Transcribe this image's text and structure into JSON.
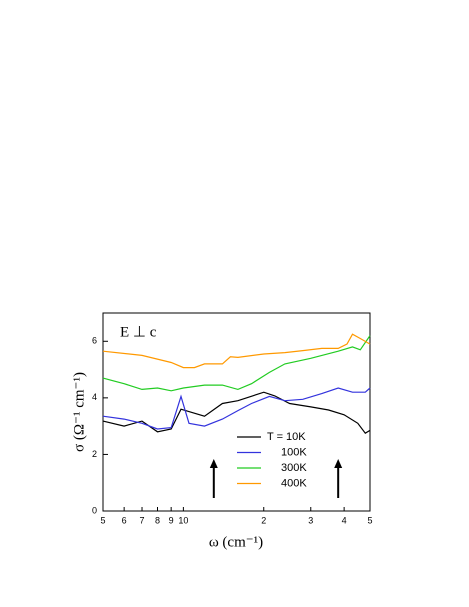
{
  "chart_data": {
    "type": "line",
    "annotation": "E ⊥ c",
    "xlabel": "ω (cm⁻¹)",
    "ylabel": "σ (Ω⁻¹ cm⁻¹)",
    "xscale": "log",
    "xlim": [
      5,
      50
    ],
    "ylim": [
      0,
      7
    ],
    "xticks": [
      5,
      6,
      7,
      8,
      9,
      10,
      {
        "value": 20,
        "label": "2"
      },
      {
        "value": 30,
        "label": "3"
      },
      {
        "value": 40,
        "label": "4"
      },
      {
        "value": 50,
        "label": "5"
      }
    ],
    "yticks": [
      0,
      2,
      4,
      6
    ],
    "legend_loc": "lower center",
    "arrows_x": [
      13,
      38
    ],
    "series": [
      {
        "name": "T = 10K",
        "color": "#000000",
        "x": [
          5,
          6,
          7,
          8,
          9,
          9.8,
          12,
          14,
          16,
          20,
          22,
          25,
          30,
          35,
          40,
          45,
          48,
          50
        ],
        "values": [
          3.18,
          3.0,
          3.18,
          2.8,
          2.9,
          3.6,
          3.35,
          3.8,
          3.9,
          4.2,
          4.07,
          3.8,
          3.68,
          3.57,
          3.4,
          3.1,
          2.75,
          2.85
        ]
      },
      {
        "name": "100K",
        "color": "#3333dd",
        "x": [
          5,
          6,
          7,
          8,
          9,
          9.8,
          10.5,
          12,
          14,
          16,
          18,
          21,
          24,
          28,
          33,
          38,
          43,
          48,
          50
        ],
        "values": [
          3.35,
          3.25,
          3.1,
          2.9,
          2.95,
          4.05,
          3.1,
          3.0,
          3.25,
          3.55,
          3.8,
          4.05,
          3.9,
          3.95,
          4.15,
          4.35,
          4.2,
          4.2,
          4.35
        ]
      },
      {
        "name": "300K",
        "color": "#22cc22",
        "x": [
          5,
          6,
          7,
          8,
          9,
          10,
          12,
          14,
          16,
          18,
          21,
          24,
          30,
          38,
          43,
          46,
          50
        ],
        "values": [
          4.7,
          4.5,
          4.3,
          4.35,
          4.25,
          4.35,
          4.45,
          4.45,
          4.3,
          4.5,
          4.9,
          5.2,
          5.4,
          5.65,
          5.8,
          5.7,
          6.2
        ]
      },
      {
        "name": "400K",
        "color": "#ff9900",
        "x": [
          5,
          7,
          9,
          10,
          11,
          12,
          14,
          15,
          16,
          20,
          24,
          28,
          33,
          38,
          41,
          43,
          46,
          50
        ],
        "values": [
          5.65,
          5.5,
          5.25,
          5.07,
          5.07,
          5.2,
          5.2,
          5.45,
          5.43,
          5.55,
          5.6,
          5.67,
          5.75,
          5.75,
          5.9,
          6.25,
          6.1,
          5.9
        ]
      }
    ]
  }
}
